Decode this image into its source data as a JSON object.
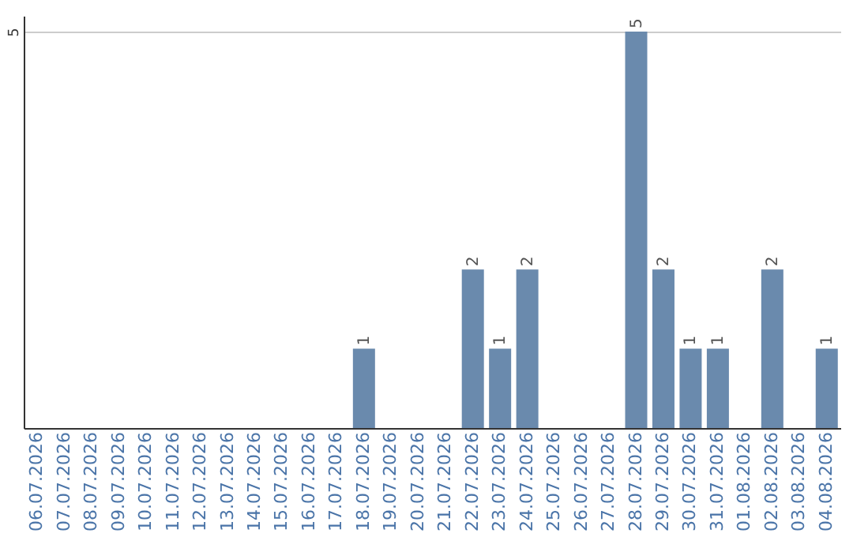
{
  "chart_data": {
    "type": "bar",
    "categories": [
      "06.07.2026",
      "07.07.2026",
      "08.07.2026",
      "09.07.2026",
      "10.07.2026",
      "11.07.2026",
      "12.07.2026",
      "13.07.2026",
      "14.07.2026",
      "15.07.2026",
      "16.07.2026",
      "17.07.2026",
      "18.07.2026",
      "19.07.2026",
      "20.07.2026",
      "21.07.2026",
      "22.07.2026",
      "23.07.2026",
      "24.07.2026",
      "25.07.2026",
      "26.07.2026",
      "27.07.2026",
      "28.07.2026",
      "29.07.2026",
      "30.07.2026",
      "31.07.2026",
      "01.08.2026",
      "02.08.2026",
      "03.08.2026",
      "04.08.2026"
    ],
    "values": [
      null,
      null,
      null,
      null,
      null,
      null,
      null,
      null,
      null,
      null,
      null,
      null,
      1,
      null,
      null,
      null,
      2,
      1,
      2,
      null,
      null,
      null,
      5,
      2,
      1,
      1,
      null,
      2,
      null,
      1
    ],
    "color": "#6a8aad",
    "ylim": [
      0,
      5.2
    ],
    "yticks": [
      5
    ],
    "grid": "y",
    "data_labels": true
  }
}
